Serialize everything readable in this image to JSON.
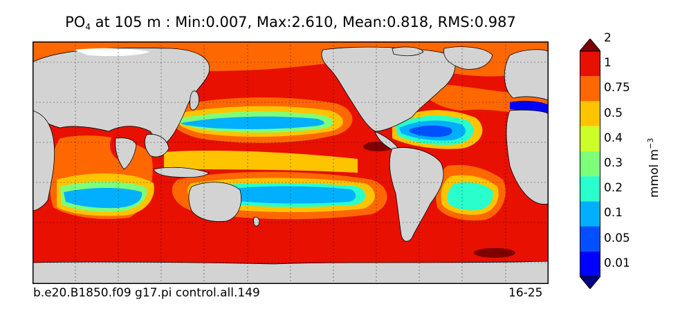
{
  "title": {
    "variable": "PO",
    "subscript": "4",
    "rest": " at 105 m : Min:0.007, Max:2.610, Mean:0.818, RMS:0.987"
  },
  "footer": {
    "case_name": "b.e20.B1850.f09 g17.pi control.all.149",
    "years": "16-25"
  },
  "colorbar": {
    "unit_base": "mmol m",
    "unit_exp": "−3",
    "ticks": [
      "0.01",
      "0.05",
      "0.1",
      "0.2",
      "0.3",
      "0.4",
      "0.5",
      "0.75",
      "1",
      "2"
    ],
    "colors": [
      "#00007f",
      "#0000ff",
      "#0050ff",
      "#00b0ff",
      "#29ffcd",
      "#7dff7a",
      "#cdff29",
      "#ffc400",
      "#ff6800",
      "#e81000",
      "#7f0000"
    ],
    "extend": "both"
  },
  "map": {
    "land_color": "#d3d3d3",
    "ocean_background": "#e81000",
    "grid": "dotted, every 30°"
  }
}
